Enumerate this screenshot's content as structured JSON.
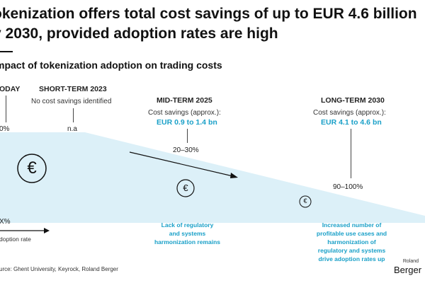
{
  "header": {
    "title_line1": "okenization offers total cost savings of up to EUR 4.6 billion",
    "title_line2": "y 2030, provided adoption rates are high",
    "subtitle": "mpact of tokenization adoption on trading costs"
  },
  "phases": {
    "today": {
      "label": "ODAY",
      "value": "0%"
    },
    "short": {
      "label": "SHORT-TERM 2023",
      "note": "No cost savings identified",
      "value": "n.a"
    },
    "mid": {
      "label": "MID-TERM 2025",
      "note": "Cost savings (approx.):",
      "savings": "EUR 0.9 to 1.4 bn",
      "adoption": "20–30%",
      "caption_l1": "Lack of regulatory",
      "caption_l2": "and systems",
      "caption_l3": "harmonization remains"
    },
    "long": {
      "label": "LONG-TERM 2030",
      "note": "Cost savings (approx.):",
      "savings": "EUR 4.1 to 4.6 bn",
      "adoption": "90–100%",
      "caption_l1": "Increased number of",
      "caption_l2": "profitable use cases and",
      "caption_l3": "harmonization of",
      "caption_l4": "regulatory and systems",
      "caption_l5": "drive adoption rates up"
    }
  },
  "axis": {
    "x_label": "X%",
    "adoption_label": "doption rate"
  },
  "icons": {
    "euro": "€"
  },
  "footer": {
    "source": "urce: Ghent University, Keyrock, Roland Berger",
    "brand_small": "Roland",
    "brand": "Berger"
  },
  "colors": {
    "accent": "#1aa0c8",
    "fill": "#dcf0f8",
    "text": "#111111"
  },
  "chart_data": {
    "type": "area",
    "categories": [
      "ODAY",
      "SHORT-TERM 2023",
      "MID-TERM 2025",
      "LONG-TERM 2030"
    ],
    "series": [
      {
        "values": [
          "0%",
          "n.a",
          "20–30%",
          "90–100%"
        ]
      }
    ],
    "annotations": [
      "No cost savings identified",
      "EUR 0.9 to 1.4 bn",
      "EUR 4.1 to 4.6 bn"
    ]
  }
}
